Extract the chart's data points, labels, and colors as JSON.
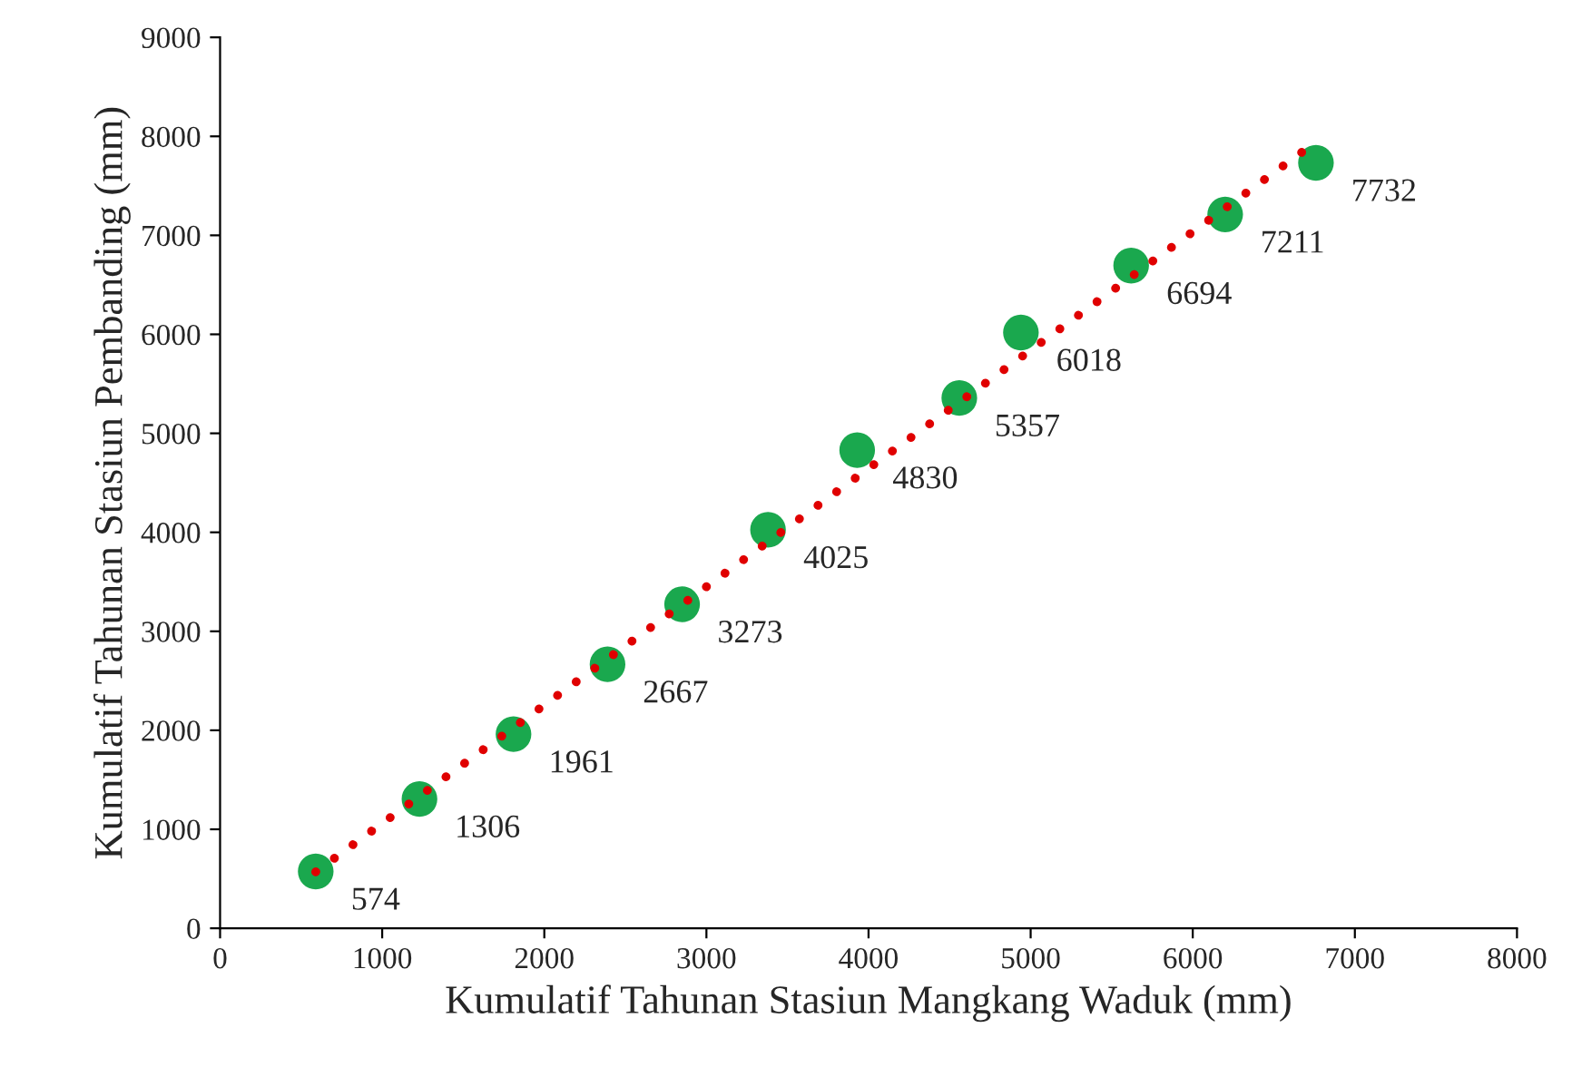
{
  "chart_data": {
    "type": "scatter",
    "xlabel": "Kumulatif Tahunan Stasiun Mangkang Waduk (mm)",
    "ylabel": "Kumulatif Tahunan Stasiun Pembanding (mm)",
    "xlim": [
      0,
      8000
    ],
    "xticks": [
      0,
      1000,
      2000,
      3000,
      4000,
      5000,
      6000,
      7000,
      8000
    ],
    "ylim": [
      0,
      9000
    ],
    "yticks": [
      0,
      1000,
      2000,
      3000,
      4000,
      5000,
      6000,
      7000,
      8000,
      9000
    ],
    "grid": false,
    "legend": false,
    "marker": "circle",
    "series": [
      {
        "type": "line",
        "marker": "none",
        "color": "#e00000",
        "line_style": "dotted",
        "x": [
          590,
          6690
        ],
        "values": [
          570,
          7860
        ]
      },
      {
        "color": "#1aa84e",
        "x": [
          590,
          1230,
          1810,
          2390,
          2850,
          3380,
          3930,
          4560,
          4940,
          5620,
          6200,
          6760
        ],
        "values": [
          574,
          1306,
          1961,
          2667,
          3273,
          4025,
          4830,
          5357,
          6018,
          6694,
          7211,
          7732
        ],
        "value_labels": [
          "574",
          "1306",
          "1961",
          "2667",
          "3273",
          "4025",
          "4830",
          "5357",
          "6018",
          "6694",
          "7211",
          "7732"
        ]
      }
    ]
  }
}
